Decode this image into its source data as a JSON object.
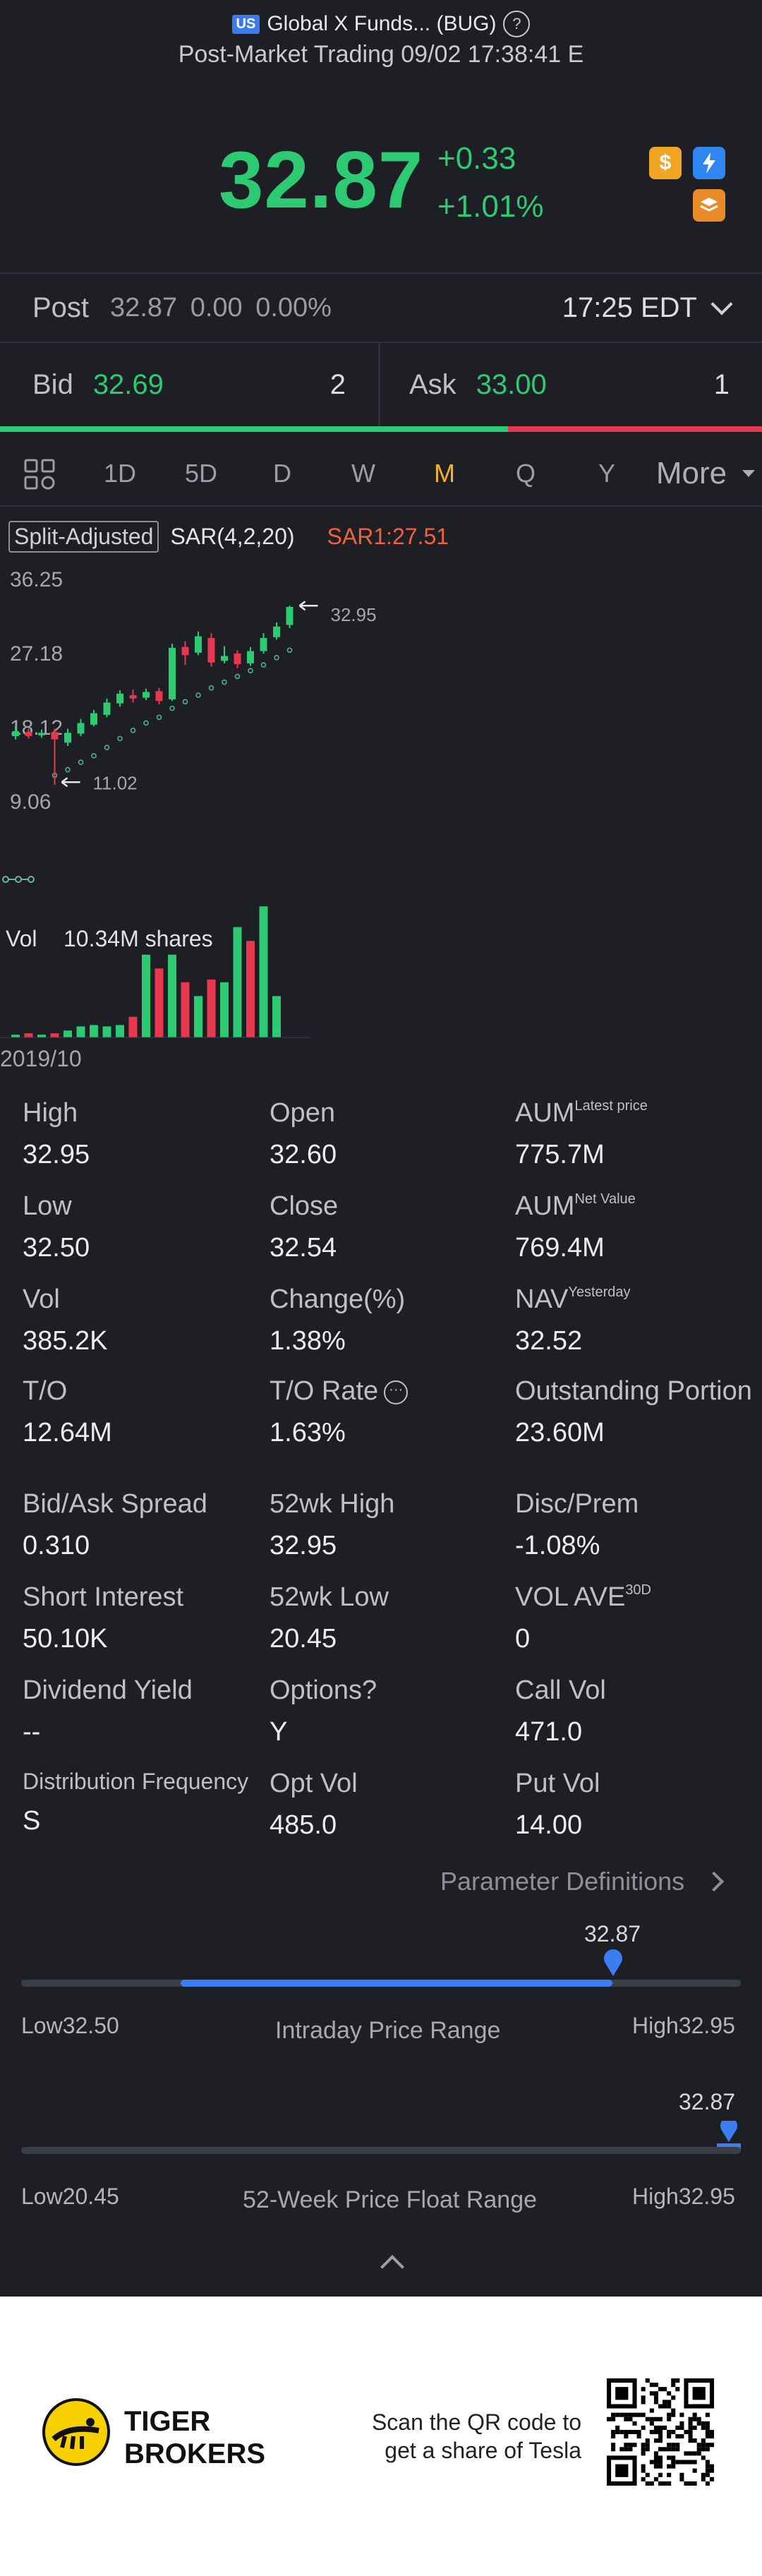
{
  "header": {
    "market_badge": "US",
    "title": "Global X Funds... (BUG)",
    "help_glyph": "?",
    "subtitle": "Post-Market Trading 09/02 17:38:41 E"
  },
  "quote": {
    "price": "32.87",
    "change": "+0.33",
    "change_pct": "+1.01%",
    "colors": {
      "up": "#2ec973",
      "down": "#e8384f",
      "accent": "#f1b12a"
    },
    "icons": [
      "dollar-icon",
      "flash-icon",
      "layers-icon"
    ]
  },
  "post": {
    "label": "Post",
    "values": "32.87  0.00  0.00%",
    "time": "17:25 EDT"
  },
  "bid_ask": {
    "bid_label": "Bid",
    "bid_price": "32.69",
    "bid_size": "2",
    "ask_label": "Ask",
    "ask_price": "33.00",
    "ask_size": "1",
    "bid_share": 0.667
  },
  "periods": {
    "items": [
      "1D",
      "5D",
      "D",
      "W",
      "M",
      "Q",
      "Y"
    ],
    "active": "M",
    "more": "More"
  },
  "chart_tags": {
    "split": "Split-Adjusted",
    "indicator": "SAR(4,2,20)",
    "sar_value": "SAR1:27.51"
  },
  "chart_data": {
    "type": "candlestick",
    "y_ticks": [
      "36.25",
      "27.18",
      "18.12",
      "9.06"
    ],
    "ylim": [
      9.06,
      36.25
    ],
    "high_label": "32.95",
    "low_label": "11.02",
    "candles": [
      {
        "o": 17.0,
        "c": 17.6,
        "h": 18.3,
        "l": 16.6
      },
      {
        "o": 17.5,
        "c": 17.0,
        "h": 17.9,
        "l": 16.7
      },
      {
        "o": 17.1,
        "c": 17.4,
        "h": 17.8,
        "l": 16.8
      },
      {
        "o": 17.5,
        "c": 16.6,
        "h": 17.9,
        "l": 11.02
      },
      {
        "o": 16.2,
        "c": 17.4,
        "h": 17.9,
        "l": 15.8
      },
      {
        "o": 17.3,
        "c": 18.6,
        "h": 19.1,
        "l": 17.0
      },
      {
        "o": 18.4,
        "c": 19.8,
        "h": 20.2,
        "l": 18.2
      },
      {
        "o": 19.6,
        "c": 21.1,
        "h": 21.6,
        "l": 19.3
      },
      {
        "o": 21.0,
        "c": 22.2,
        "h": 22.6,
        "l": 20.6
      },
      {
        "o": 22.0,
        "c": 21.6,
        "h": 22.7,
        "l": 21.1
      },
      {
        "o": 21.7,
        "c": 22.4,
        "h": 22.8,
        "l": 21.4
      },
      {
        "o": 22.5,
        "c": 21.3,
        "h": 22.9,
        "l": 20.9
      },
      {
        "o": 21.5,
        "c": 27.8,
        "h": 28.3,
        "l": 21.3
      },
      {
        "o": 27.9,
        "c": 26.9,
        "h": 28.6,
        "l": 25.7
      },
      {
        "o": 27.2,
        "c": 29.2,
        "h": 29.8,
        "l": 26.9
      },
      {
        "o": 29.0,
        "c": 26.0,
        "h": 29.6,
        "l": 25.5
      },
      {
        "o": 26.2,
        "c": 26.8,
        "h": 28.0,
        "l": 25.9
      },
      {
        "o": 27.1,
        "c": 25.8,
        "h": 27.5,
        "l": 25.3
      },
      {
        "o": 25.9,
        "c": 27.4,
        "h": 27.9,
        "l": 25.6
      },
      {
        "o": 27.4,
        "c": 29.0,
        "h": 29.6,
        "l": 27.1
      },
      {
        "o": 29.1,
        "c": 30.4,
        "h": 30.9,
        "l": 28.8
      },
      {
        "o": 30.6,
        "c": 32.8,
        "h": 32.95,
        "l": 30.2
      }
    ],
    "sar": [
      {
        "i": 3,
        "v": 12.2
      },
      {
        "i": 4,
        "v": 12.9
      },
      {
        "i": 5,
        "v": 13.8
      },
      {
        "i": 6,
        "v": 14.6
      },
      {
        "i": 7,
        "v": 15.6
      },
      {
        "i": 8,
        "v": 16.7
      },
      {
        "i": 9,
        "v": 17.7
      },
      {
        "i": 10,
        "v": 18.6
      },
      {
        "i": 11,
        "v": 19.3
      },
      {
        "i": 12,
        "v": 20.4
      },
      {
        "i": 13,
        "v": 21.2
      },
      {
        "i": 14,
        "v": 22.0
      },
      {
        "i": 15,
        "v": 22.9
      },
      {
        "i": 16,
        "v": 23.6
      },
      {
        "i": 17,
        "v": 24.3
      },
      {
        "i": 18,
        "v": 25.0
      },
      {
        "i": 19,
        "v": 25.7
      },
      {
        "i": 20,
        "v": 26.6
      },
      {
        "i": 21,
        "v": 27.51
      }
    ],
    "volume": {
      "label": "Vol",
      "value": "10.34M shares",
      "bars": [
        0.02,
        0.03,
        0.02,
        0.03,
        0.05,
        0.08,
        0.09,
        0.08,
        0.09,
        0.15,
        0.6,
        0.5,
        0.6,
        0.4,
        0.3,
        0.42,
        0.4,
        0.8,
        0.7,
        0.95,
        0.3,
        0.0
      ],
      "up": [
        1,
        0,
        1,
        0,
        1,
        1,
        1,
        1,
        1,
        0,
        1,
        0,
        1,
        0,
        1,
        0,
        1,
        1,
        0,
        1,
        1,
        1
      ]
    },
    "x_label": "2019/10"
  },
  "stats": [
    {
      "label": "High",
      "value": "32.95"
    },
    {
      "label": "Open",
      "value": "32.60"
    },
    {
      "label": "AUM",
      "sup": "Latest price",
      "value": "775.7M"
    },
    {
      "label": "Low",
      "value": "32.50"
    },
    {
      "label": "Close",
      "value": "32.54"
    },
    {
      "label": "AUM",
      "sup": "Net Value",
      "value": "769.4M"
    },
    {
      "label": "Vol",
      "value": "385.2K"
    },
    {
      "label": "Change(%)",
      "value": "1.38%"
    },
    {
      "label": "NAV",
      "sup": "Yesterday",
      "value": "32.52"
    },
    {
      "label": "T/O",
      "value": "12.64M"
    },
    {
      "label": "T/O Rate",
      "value": "1.63%",
      "icon": "more-icon"
    },
    {
      "label": "Outstanding Portion",
      "value": "23.60M"
    },
    {
      "label": "Bid/Ask Spread",
      "value": "0.310"
    },
    {
      "label": "52wk High",
      "value": "32.95"
    },
    {
      "label": "Disc/Prem",
      "value": "-1.08%"
    },
    {
      "label": "Short Interest",
      "value": "50.10K"
    },
    {
      "label": "52wk Low",
      "value": "20.45"
    },
    {
      "label": "VOL AVE",
      "sup": "30D",
      "value": "0"
    },
    {
      "label": "Dividend Yield",
      "value": "--"
    },
    {
      "label": "Options?",
      "value": "Y"
    },
    {
      "label": "Call Vol",
      "value": "471.0"
    },
    {
      "label": "Distribution Frequency",
      "value": "S"
    },
    {
      "label": "Opt Vol",
      "value": "485.0"
    },
    {
      "label": "Put Vol",
      "value": "14.00"
    }
  ],
  "param_link": "Parameter Definitions",
  "intraday_range": {
    "title": "Intraday Price Range",
    "current": "32.87",
    "low": "Low32.50",
    "high": "High32.95",
    "position": 0.82
  },
  "week52_range": {
    "title": "52-Week Price Float Range",
    "current": "32.87",
    "low": "Low20.45",
    "high": "High32.95",
    "position": 0.99
  },
  "footer": {
    "brand_line1": "TIGER",
    "brand_line2": "BROKERS",
    "scan_line1": "Scan the QR code to",
    "scan_line2": "get a share of Tesla"
  }
}
